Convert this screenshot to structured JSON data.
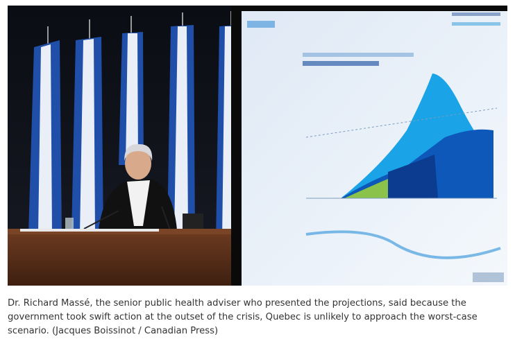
{
  "photo": {
    "caption": "Dr. Richard Massé, the senior public health adviser who presented the projections, said because the government took swift action at the outset of the crisis, Quebec is unlikely to approach the worst-case scenario. (Jacques Boissinot / Canadian Press)"
  }
}
